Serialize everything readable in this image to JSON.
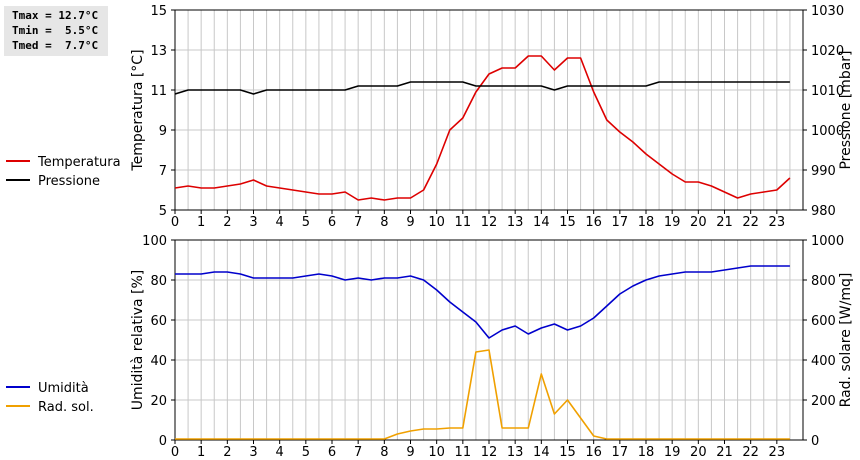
{
  "stats": {
    "tmax": "Tmax = 12.7°C",
    "tmin": "Tmin =  5.5°C",
    "tmed": "Tmed =  7.7°C"
  },
  "colors": {
    "temperature": "#dd0000",
    "pressure": "#000000",
    "humidity": "#0000cc",
    "radiation": "#f0a000",
    "grid": "#c8c8c8"
  },
  "chart_data": [
    {
      "type": "line",
      "xlabel": "",
      "ylabel": "Temperatura [°C]",
      "y2label": "Pressione [mbar]",
      "xlim": [
        0,
        24
      ],
      "ylim": [
        5,
        15
      ],
      "y2lim": [
        980,
        1030
      ],
      "x_ticks": [
        "0",
        "1",
        "2",
        "3",
        "4",
        "5",
        "6",
        "7",
        "8",
        "9",
        "10",
        "11",
        "12",
        "13",
        "14",
        "15",
        "16",
        "17",
        "18",
        "19",
        "20",
        "21",
        "22",
        "23"
      ],
      "y_ticks": [
        "5",
        "7",
        "9",
        "11",
        "13",
        "15"
      ],
      "y2_ticks": [
        "980",
        "990",
        "1000",
        "1010",
        "1020",
        "1030"
      ],
      "grid": true,
      "legend_position": "left",
      "series": [
        {
          "name": "Temperatura",
          "axis": "left",
          "x": [
            0,
            0.5,
            1,
            1.5,
            2,
            2.5,
            3,
            3.5,
            4,
            4.5,
            5,
            5.5,
            6,
            6.5,
            7,
            7.5,
            8,
            8.5,
            9,
            9.5,
            10,
            10.5,
            11,
            11.5,
            12,
            12.5,
            13,
            13.5,
            14,
            14.5,
            15,
            15.5,
            16,
            16.5,
            17,
            17.5,
            18,
            18.5,
            19,
            19.5,
            20,
            20.5,
            21,
            21.5,
            22,
            22.5,
            23,
            23.5
          ],
          "values": [
            6.1,
            6.2,
            6.1,
            6.1,
            6.2,
            6.3,
            6.5,
            6.2,
            6.1,
            6.0,
            5.9,
            5.8,
            5.8,
            5.9,
            5.5,
            5.6,
            5.5,
            5.6,
            5.6,
            6.0,
            7.3,
            9.0,
            9.6,
            10.9,
            11.8,
            12.1,
            12.1,
            12.7,
            12.7,
            12.0,
            12.6,
            12.6,
            10.9,
            9.5,
            8.9,
            8.4,
            7.8,
            7.3,
            6.8,
            6.4,
            6.4,
            6.2,
            5.9,
            5.6,
            5.8,
            5.9,
            6.0,
            6.6
          ]
        },
        {
          "name": "Pressione",
          "axis": "right",
          "x": [
            0,
            0.5,
            1,
            1.5,
            2,
            2.5,
            3,
            3.5,
            4,
            4.5,
            5,
            5.5,
            6,
            6.5,
            7,
            7.5,
            8,
            8.5,
            9,
            9.5,
            10,
            10.5,
            11,
            11.5,
            12,
            12.5,
            13,
            13.5,
            14,
            14.5,
            15,
            15.5,
            16,
            16.5,
            17,
            17.5,
            18,
            18.5,
            19,
            19.5,
            20,
            20.5,
            21,
            21.5,
            22,
            22.5,
            23,
            23.5
          ],
          "values": [
            1009,
            1010,
            1010,
            1010,
            1010,
            1010,
            1009,
            1010,
            1010,
            1010,
            1010,
            1010,
            1010,
            1010,
            1011,
            1011,
            1011,
            1011,
            1012,
            1012,
            1012,
            1012,
            1012,
            1011,
            1011,
            1011,
            1011,
            1011,
            1011,
            1010,
            1011,
            1011,
            1011,
            1011,
            1011,
            1011,
            1011,
            1012,
            1012,
            1012,
            1012,
            1012,
            1012,
            1012,
            1012,
            1012,
            1012,
            1012
          ]
        }
      ]
    },
    {
      "type": "line",
      "xlabel": "",
      "ylabel": "Umidità relativa [%]",
      "y2label": "Rad. solare [W/mq]",
      "xlim": [
        0,
        24
      ],
      "ylim": [
        0,
        100
      ],
      "y2lim": [
        0,
        1000
      ],
      "x_ticks": [
        "0",
        "1",
        "2",
        "3",
        "4",
        "5",
        "6",
        "7",
        "8",
        "9",
        "10",
        "11",
        "12",
        "13",
        "14",
        "15",
        "16",
        "17",
        "18",
        "19",
        "20",
        "21",
        "22",
        "23"
      ],
      "y_ticks": [
        "0",
        "20",
        "40",
        "60",
        "80",
        "100"
      ],
      "y2_ticks": [
        "0",
        "200",
        "400",
        "600",
        "800",
        "1000"
      ],
      "grid": true,
      "legend_position": "left",
      "series": [
        {
          "name": "Umidità",
          "axis": "left",
          "x": [
            0,
            0.5,
            1,
            1.5,
            2,
            2.5,
            3,
            3.5,
            4,
            4.5,
            5,
            5.5,
            6,
            6.5,
            7,
            7.5,
            8,
            8.5,
            9,
            9.5,
            10,
            10.5,
            11,
            11.5,
            12,
            12.5,
            13,
            13.5,
            14,
            14.5,
            15,
            15.5,
            16,
            16.5,
            17,
            17.5,
            18,
            18.5,
            19,
            19.5,
            20,
            20.5,
            21,
            21.5,
            22,
            22.5,
            23,
            23.5
          ],
          "values": [
            83,
            83,
            83,
            84,
            84,
            83,
            81,
            81,
            81,
            81,
            82,
            83,
            82,
            80,
            81,
            80,
            81,
            81,
            82,
            80,
            75,
            69,
            64,
            59,
            51,
            55,
            57,
            53,
            56,
            58,
            55,
            57,
            61,
            67,
            73,
            77,
            80,
            82,
            83,
            84,
            84,
            84,
            85,
            86,
            87,
            87,
            87,
            87
          ]
        },
        {
          "name": "Rad. sol.",
          "axis": "right",
          "x": [
            0,
            1,
            2,
            3,
            4,
            5,
            6,
            7,
            8,
            8.5,
            9,
            9.5,
            10,
            10.5,
            11,
            11.5,
            12,
            12.5,
            13,
            13.5,
            14,
            14.5,
            15,
            15.5,
            16,
            16.5,
            17,
            18,
            19,
            20,
            21,
            22,
            23,
            23.5
          ],
          "values": [
            5,
            5,
            5,
            5,
            5,
            5,
            5,
            5,
            5,
            30,
            45,
            55,
            55,
            60,
            60,
            440,
            450,
            60,
            60,
            60,
            330,
            130,
            200,
            110,
            20,
            5,
            5,
            5,
            5,
            5,
            5,
            5,
            5,
            5
          ]
        }
      ]
    }
  ]
}
